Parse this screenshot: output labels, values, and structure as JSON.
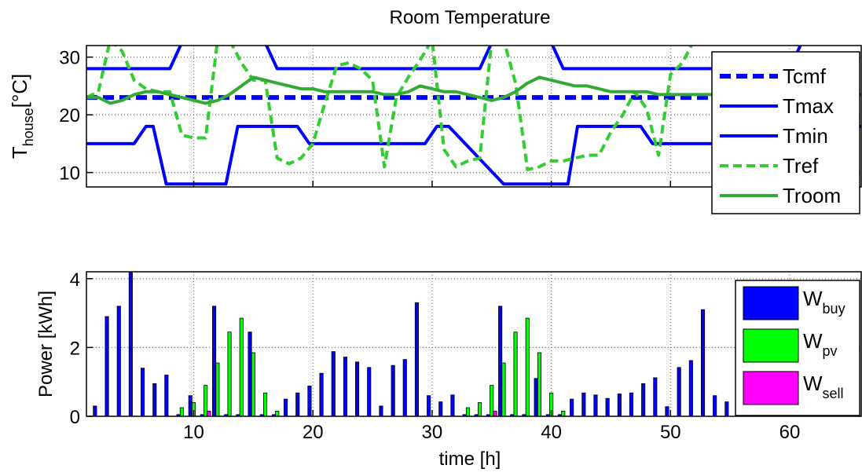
{
  "chart_data": [
    {
      "type": "line",
      "title": "Room Temperature",
      "ylabel": "T",
      "ylabel_sub": "house",
      "ylabel_unit": "[°C]",
      "xlim": [
        1,
        66
      ],
      "ylim": [
        7.5,
        32
      ],
      "xticks": [
        10,
        20,
        30,
        40,
        50,
        60
      ],
      "yticks": [
        10,
        20,
        30
      ],
      "grid": true,
      "legend_position": "right",
      "series": [
        {
          "name": "Tcmf",
          "style": "dashed",
          "color": "#0000ff",
          "width": 6,
          "x": [
            1,
            66
          ],
          "y": [
            23,
            23
          ]
        },
        {
          "name": "Tmax",
          "style": "solid",
          "color": "#0000ff",
          "width": 4,
          "x": [
            1,
            8,
            9,
            16,
            17,
            29,
            30,
            34,
            35,
            40,
            41,
            53,
            54,
            60,
            61,
            66
          ],
          "y": [
            28,
            28,
            32.5,
            32.5,
            28,
            28,
            28,
            28,
            32.5,
            32.5,
            28,
            28,
            28,
            28,
            32.5,
            32.5
          ]
        },
        {
          "name": "Tmin",
          "style": "solid",
          "color": "#0000ff",
          "width": 4,
          "x": [
            1,
            5,
            6,
            6.6,
            7.7,
            12.7,
            13.7,
            18.7,
            19.7,
            24.7,
            25.7,
            28,
            29.4,
            30.4,
            31.4,
            36,
            37.2,
            41.4,
            42.2,
            47.5,
            48.5,
            53,
            53.5,
            58.5,
            59.5,
            66
          ],
          "y": [
            15,
            15,
            18,
            18,
            8,
            8,
            18,
            18,
            15,
            15,
            15,
            15,
            15,
            18,
            18,
            8,
            8,
            8,
            18,
            18,
            15,
            15,
            15,
            15,
            18,
            18
          ]
        },
        {
          "name": "Tref",
          "style": "dashed",
          "color": "#33cc33",
          "width": 4,
          "x": [
            1,
            2,
            3,
            4,
            5,
            6,
            7,
            8,
            9,
            10,
            11,
            12,
            13,
            14,
            15,
            16,
            17,
            18,
            19,
            20,
            21,
            22,
            23,
            24,
            25,
            26,
            27,
            28,
            29,
            30,
            31,
            32,
            33,
            34,
            35,
            36,
            37,
            38,
            39,
            40,
            41,
            42,
            43,
            44,
            45,
            46,
            47,
            48,
            49,
            50,
            51,
            52,
            53,
            54,
            55,
            56,
            57,
            58,
            59,
            60,
            61,
            62,
            63,
            64,
            65,
            66
          ],
          "y": [
            23,
            24,
            33,
            31,
            26,
            24.5,
            24,
            24,
            16.5,
            16,
            16,
            33,
            33,
            29,
            26,
            26,
            12.5,
            11.5,
            12.5,
            15,
            22,
            28.5,
            29,
            28,
            26,
            11,
            23,
            26.5,
            29.5,
            33,
            14,
            11,
            12,
            12.5,
            33,
            33,
            25.5,
            10.5,
            11,
            12,
            12,
            12.5,
            13,
            13,
            17,
            20,
            24,
            21,
            13,
            27,
            29,
            33,
            33,
            33,
            33,
            33,
            33,
            33,
            33,
            33,
            33,
            33,
            33,
            33,
            33,
            33
          ]
        },
        {
          "name": "Troom",
          "style": "solid",
          "color": "#33aa33",
          "width": 4,
          "x": [
            1,
            2,
            3,
            4,
            5,
            6,
            7,
            8,
            9,
            10,
            11,
            12,
            13,
            14,
            15,
            16,
            17,
            18,
            19,
            20,
            21,
            22,
            23,
            24,
            25,
            26,
            27,
            28,
            29,
            30,
            31,
            32,
            33,
            34,
            35,
            36,
            37,
            38,
            39,
            40,
            41,
            42,
            43,
            44,
            45,
            46,
            47,
            48,
            49,
            50,
            51,
            52,
            53,
            54,
            55,
            56,
            57,
            58,
            59,
            60,
            61,
            62,
            63,
            64,
            65,
            66
          ],
          "y": [
            23,
            23,
            22,
            22.5,
            23.5,
            24,
            24,
            23.5,
            23,
            22.5,
            22,
            22.5,
            23.5,
            25,
            26.5,
            26,
            25.5,
            25,
            24.5,
            24.5,
            24,
            24,
            24,
            24,
            24,
            23.5,
            23.5,
            24,
            25,
            24.5,
            24,
            24,
            23.5,
            23,
            22.5,
            23,
            24,
            25.5,
            26.5,
            26,
            25.5,
            25,
            25,
            24.5,
            24,
            24,
            24,
            24,
            23.5,
            23.5,
            23.5,
            23.5,
            23.5,
            23.5,
            23.5,
            23.5,
            23.5,
            23.5,
            23.5,
            23.5,
            23.5,
            23.5,
            23.5,
            23.5,
            23.5,
            23.5
          ]
        }
      ]
    },
    {
      "type": "bar",
      "title": "",
      "ylabel": "Power [kWh]",
      "xlabel": "time [h]",
      "xlim": [
        1,
        66
      ],
      "ylim": [
        0,
        4.2
      ],
      "xticks": [
        10,
        20,
        30,
        40,
        50,
        60
      ],
      "yticks": [
        0,
        2,
        4
      ],
      "grid": true,
      "legend_position": "right",
      "categories": [
        2,
        3,
        4,
        5,
        6,
        7,
        8,
        9,
        10,
        11,
        12,
        13,
        14,
        15,
        16,
        17,
        18,
        19,
        20,
        21,
        22,
        23,
        24,
        25,
        26,
        27,
        28,
        29,
        30,
        31,
        32,
        33,
        34,
        35,
        36,
        37,
        38,
        39,
        40,
        41,
        42,
        43,
        44,
        45,
        46,
        47,
        48,
        49,
        50,
        51,
        52,
        53,
        54,
        55,
        56,
        57,
        58,
        59,
        60,
        61,
        62,
        63,
        64,
        65
      ],
      "series": [
        {
          "name": "W",
          "name_sub": "buy",
          "color": "#0000ff",
          "values": [
            0.3,
            2.9,
            3.2,
            4.3,
            1.4,
            0.95,
            1.2,
            0.05,
            0.6,
            0.05,
            3.2,
            0.05,
            0.05,
            2.45,
            0.05,
            0.05,
            0.5,
            0.68,
            0.88,
            1.25,
            1.88,
            1.72,
            1.58,
            1.42,
            0.3,
            1.48,
            1.65,
            3.3,
            0.6,
            0.42,
            0.62,
            0.05,
            0.05,
            0.05,
            3.2,
            0.05,
            0.05,
            1.1,
            0.05,
            0.05,
            0.5,
            0.68,
            0.62,
            0.52,
            0.65,
            0.68,
            0.95,
            1.12,
            0.28,
            1.42,
            1.62,
            3.1,
            0.6,
            0.42,
            0.08,
            0.05,
            0.05,
            0.05,
            0.05,
            0.05,
            0.05,
            0.05,
            0.05,
            0.05
          ]
        },
        {
          "name": "W",
          "name_sub": "pv",
          "color": "#00ff00",
          "values": [
            0,
            0,
            0,
            0,
            0,
            0,
            0,
            0.25,
            0.4,
            0.9,
            1.55,
            2.45,
            2.85,
            1.85,
            0.68,
            0.15,
            0,
            0,
            0,
            0,
            0,
            0,
            0,
            0,
            0,
            0,
            0,
            0,
            0,
            0,
            0,
            0.25,
            0.4,
            0.9,
            1.55,
            2.45,
            2.85,
            1.85,
            0.68,
            0.15,
            0,
            0,
            0,
            0,
            0,
            0,
            0,
            0,
            0,
            0,
            0,
            0,
            0,
            0,
            0.05,
            0.05,
            0.05,
            0.05,
            0.05,
            0.05,
            0.05,
            0.05,
            0.05,
            0.05
          ]
        },
        {
          "name": "W",
          "name_sub": "sell",
          "color": "#ff00ff",
          "values": [
            0,
            0,
            0,
            0,
            0,
            0,
            0,
            0,
            0,
            0.15,
            0,
            0,
            0,
            0,
            0,
            0,
            0,
            0,
            0,
            0,
            0,
            0,
            0,
            0,
            0,
            0,
            0,
            0,
            0,
            0,
            0,
            0,
            0,
            0.15,
            0,
            0,
            0,
            0,
            0,
            0,
            0,
            0,
            0,
            0,
            0,
            0,
            0,
            0,
            0,
            0,
            0,
            0,
            0,
            0,
            0,
            0,
            0,
            0,
            0,
            0,
            0,
            0,
            0,
            0
          ]
        }
      ]
    }
  ]
}
